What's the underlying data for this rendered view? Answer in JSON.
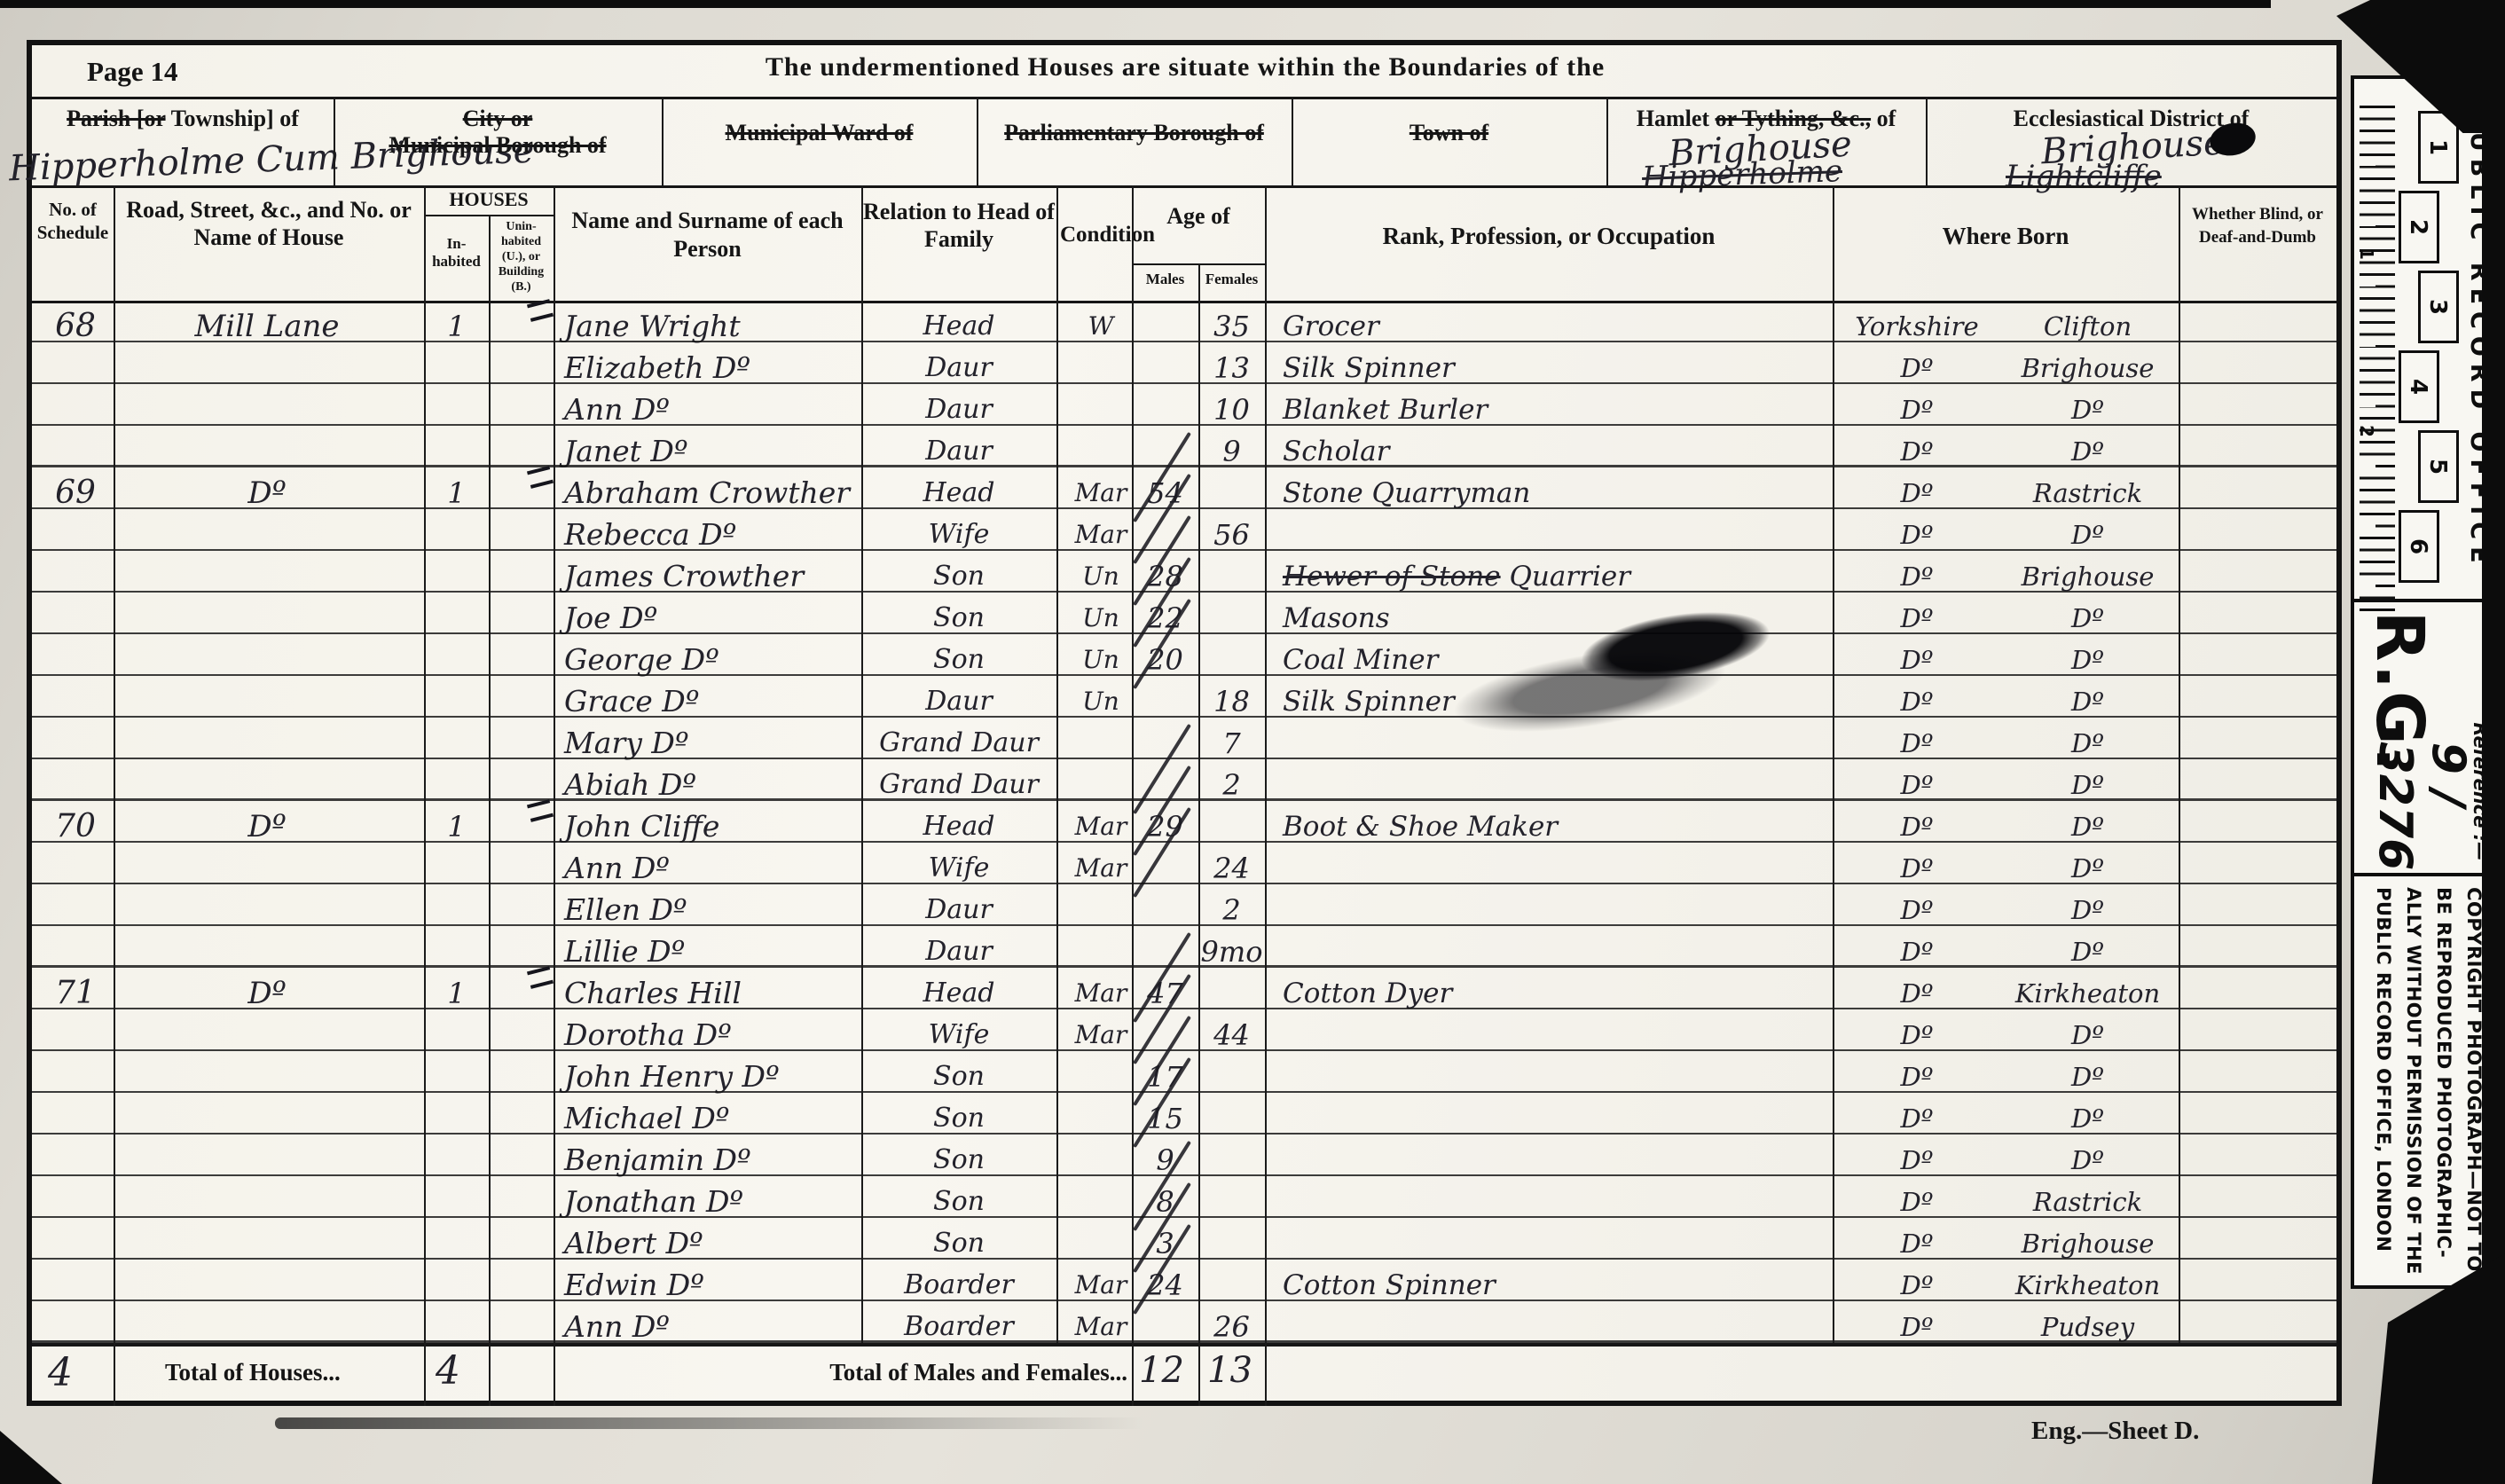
{
  "page": {
    "label": "Page 14",
    "title": "The undermentioned Houses are situate within the Boundaries of the",
    "footer": "Eng.—Sheet D."
  },
  "boundary_header": {
    "parish": {
      "struck": "Parish [or",
      "rest": " Township] of",
      "value": "Hipperholme Cum Brighouse"
    },
    "city": {
      "struck_line1": "City or",
      "struck_line2": "Municipal Borough of"
    },
    "ward": {
      "struck": "Municipal Ward of"
    },
    "parliamentary": {
      "struck": "Parliamentary Borough of"
    },
    "town": {
      "struck": "Town of"
    },
    "hamlet": {
      "pre": "Hamlet ",
      "struck": "or Tything, &c.,",
      "post": " of",
      "value": "Brighouse",
      "value_struck": "Hipperholme"
    },
    "ecclesiastical": {
      "label": "Ecclesiastical District of",
      "value": "Brighouse",
      "value_struck": "Lightcliffe"
    }
  },
  "columns": {
    "schedule": "No. of Schedule",
    "road": "Road, Street, &c., and No. or Name of House",
    "houses": "HOUSES",
    "inhabited": "In-habited",
    "uninhabited": "Unin-habited (U.), or Building (B.)",
    "name": "Name and Surname of each Person",
    "relation": "Relation to Head of Family",
    "condition": "Condition",
    "age": "Age of",
    "males": "Males",
    "females": "Females",
    "rank": "Rank, Profession, or Occupation",
    "born": "Where Born",
    "blind": "Whether Blind, or Deaf-and-Dumb"
  },
  "rows": [
    {
      "sch": "68",
      "road": "Mill Lane",
      "inh": "1",
      "name": "Jane Wright",
      "rel": "Head",
      "cond": "W",
      "m": "",
      "f": "35",
      "occ": "Grocer",
      "born_a": "Yorkshire",
      "born_b": "Clifton"
    },
    {
      "name": "Elizabeth Dº",
      "rel": "Daur",
      "f": "13",
      "occ": "Silk Spinner",
      "born_a": "Dº",
      "born_b": "Brighouse"
    },
    {
      "name": "Ann Dº",
      "rel": "Daur",
      "f": "10",
      "occ": "Blanket Burler",
      "born_a": "Dº",
      "born_b": "Dº"
    },
    {
      "name": "Janet Dº",
      "rel": "Daur",
      "f": "9",
      "occ": "Scholar",
      "born_a": "Dº",
      "born_b": "Dº"
    },
    {
      "sch": "69",
      "road": "Dº",
      "inh": "1",
      "name": "Abraham Crowther",
      "rel": "Head",
      "cond": "Mar",
      "m": "54",
      "occ": "Stone Quarryman",
      "born_a": "Dº",
      "born_b": "Rastrick",
      "tally": true
    },
    {
      "name": "Rebecca Dº",
      "rel": "Wife",
      "cond": "Mar",
      "f": "56",
      "born_a": "Dº",
      "born_b": "Dº",
      "tally": true
    },
    {
      "name": "James Crowther",
      "rel": "Son",
      "cond": "Un",
      "m": "28",
      "occ_struck": "Hewer of Stone",
      "occ": " Quarrier",
      "born_a": "Dº",
      "born_b": "Brighouse",
      "tally": true
    },
    {
      "name": "Joe Dº",
      "rel": "Son",
      "cond": "Un",
      "m": "22",
      "occ": "Masons",
      "born_a": "Dº",
      "born_b": "Dº",
      "tally": true,
      "smudge": true
    },
    {
      "name": "George Dº",
      "rel": "Son",
      "cond": "Un",
      "m": "20",
      "occ": "Coal Miner",
      "born_a": "Dº",
      "born_b": "Dº",
      "tally": true
    },
    {
      "name": "Grace Dº",
      "rel": "Daur",
      "cond": "Un",
      "f": "18",
      "occ": "Silk Spinner",
      "born_a": "Dº",
      "born_b": "Dº"
    },
    {
      "name": "Mary Dº",
      "rel": "Grand Daur",
      "f": "7",
      "born_a": "Dº",
      "born_b": "Dº"
    },
    {
      "name": "Abiah Dº",
      "rel": "Grand Daur",
      "f": "2",
      "born_a": "Dº",
      "born_b": "Dº",
      "tally": true
    },
    {
      "sch": "70",
      "road": "Dº",
      "inh": "1",
      "name": "John Cliffe",
      "rel": "Head",
      "cond": "Mar",
      "m": "29",
      "occ": "Boot & Shoe Maker",
      "born_a": "Dº",
      "born_b": "Dº",
      "tally": true
    },
    {
      "name": "Ann Dº",
      "rel": "Wife",
      "cond": "Mar",
      "f": "24",
      "born_a": "Dº",
      "born_b": "Dº",
      "tally": true
    },
    {
      "name": "Ellen Dº",
      "rel": "Daur",
      "f": "2",
      "born_a": "Dº",
      "born_b": "Dº"
    },
    {
      "name": "Lillie Dº",
      "rel": "Daur",
      "f": "9mo",
      "born_a": "Dº",
      "born_b": "Dº"
    },
    {
      "sch": "71",
      "road": "Dº",
      "inh": "1",
      "name": "Charles Hill",
      "rel": "Head",
      "cond": "Mar",
      "m": "47",
      "occ": "Cotton Dyer",
      "born_a": "Dº",
      "born_b": "Kirkheaton",
      "tally": true
    },
    {
      "name": "Dorotha Dº",
      "rel": "Wife",
      "cond": "Mar",
      "f": "44",
      "born_a": "Dº",
      "born_b": "Dº",
      "tally": true
    },
    {
      "name": "John Henry Dº",
      "rel": "Son",
      "m": "17",
      "born_a": "Dº",
      "born_b": "Dº",
      "tally": true
    },
    {
      "name": "Michael Dº",
      "rel": "Son",
      "m": "15",
      "born_a": "Dº",
      "born_b": "Dº",
      "tally": true
    },
    {
      "name": "Benjamin Dº",
      "rel": "Son",
      "m": "9",
      "born_a": "Dº",
      "born_b": "Dº"
    },
    {
      "name": "Jonathan Dº",
      "rel": "Son",
      "m": "8",
      "born_a": "Dº",
      "born_b": "Rastrick",
      "tally": true
    },
    {
      "name": "Albert Dº",
      "rel": "Son",
      "m": "3",
      "born_a": "Dº",
      "born_b": "Brighouse",
      "tally": true
    },
    {
      "name": "Edwin Dº",
      "rel": "Boarder",
      "cond": "Mar",
      "m": "24",
      "occ": "Cotton Spinner",
      "born_a": "Dº",
      "born_b": "Kirkheaton",
      "tally": true
    },
    {
      "name": "Ann Dº",
      "rel": "Boarder",
      "cond": "Mar",
      "f": "26",
      "born_a": "Dº",
      "born_b": "Pudsey"
    }
  ],
  "totals": {
    "schedule_total": "4",
    "houses_label": "Total of Houses...",
    "houses_value": "4",
    "males_females_label": "Total of Males and Females...",
    "males_total": "12",
    "females_total": "13"
  },
  "stamp": {
    "office": "PUBLIC RECORD OFFICE",
    "box_numbers": [
      "1",
      "2",
      "3",
      "4",
      "5",
      "6"
    ],
    "inch_labels": [
      "1",
      "2"
    ],
    "reference_label": "Reference :—",
    "series": "R.G.",
    "piece": "9 / 3276",
    "copyright_lines": [
      "COPYRIGHT PHOTOGRAPH—NOT TO",
      "BE REPRODUCED PHOTOGRAPHIC-",
      "ALLY WITHOUT PERMISSION OF THE",
      "PUBLIC RECORD OFFICE, LONDON"
    ]
  }
}
